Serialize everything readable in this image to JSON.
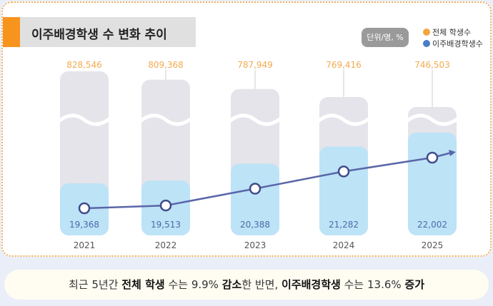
{
  "header": {
    "title": "이주배경학생 수 변화 추이",
    "unit": "단위/명, %"
  },
  "legend": [
    {
      "label": "전체 학생수",
      "color": "#f5a540"
    },
    {
      "label": "이주배경학생수",
      "color": "#4a7cc9"
    }
  ],
  "chart_data": {
    "type": "bar",
    "categories": [
      "2021",
      "2022",
      "2023",
      "2024",
      "2025"
    ],
    "series": [
      {
        "name": "전체 학생수",
        "values": [
          828546,
          809368,
          787949,
          769416,
          746503
        ],
        "labels": [
          "828,546",
          "809,368",
          "787,949",
          "769,416",
          "746,503"
        ],
        "color": "#e4e4ea"
      },
      {
        "name": "이주배경학생수",
        "values": [
          19368,
          19513,
          20388,
          21282,
          22002
        ],
        "labels": [
          "19,368",
          "19,513",
          "20,388",
          "21,282",
          "22,002"
        ],
        "color": "#bde3f7",
        "line_color": "#5a66a8"
      }
    ],
    "axis_break": true
  },
  "summary": {
    "p1": "최근 5년간 ",
    "b1": "전체 학생",
    "p2": " 수는 9.9% ",
    "b2": "감소",
    "p3": "한 반면, ",
    "b3": "이주배경학생",
    "p4": " 수는 13.6% ",
    "b4": "증가"
  }
}
